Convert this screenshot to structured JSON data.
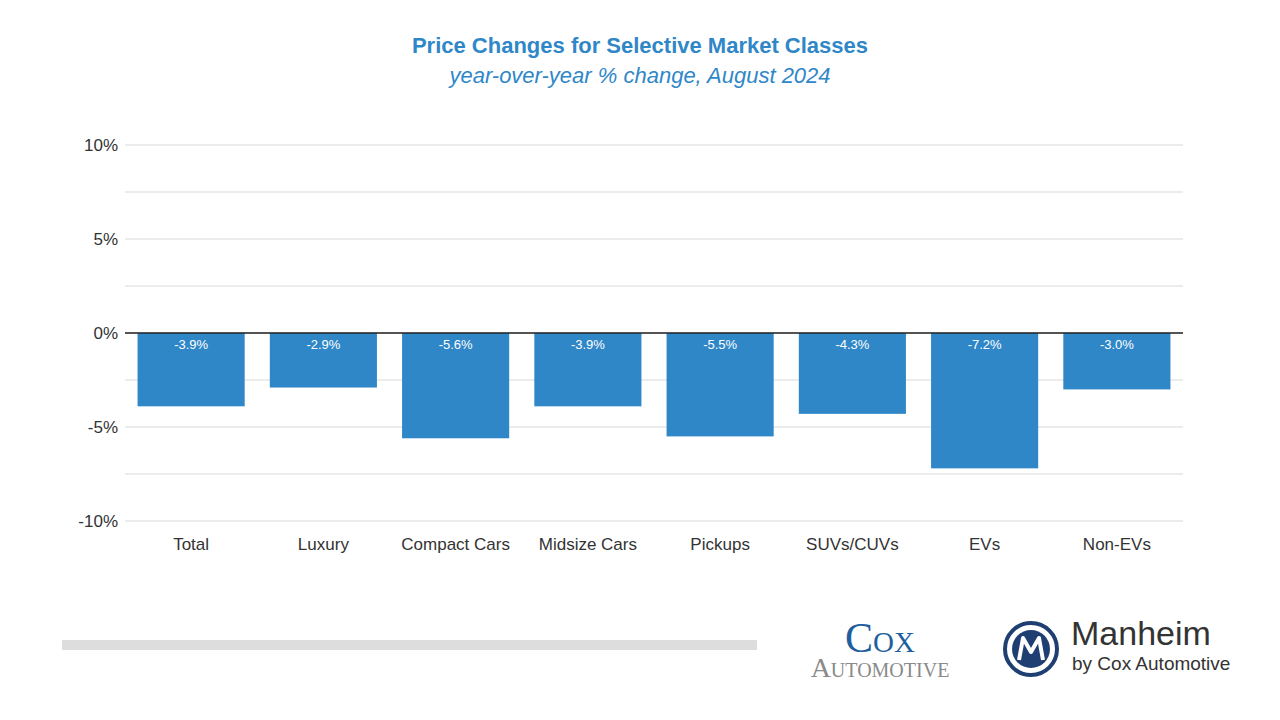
{
  "chart_data": {
    "type": "bar",
    "title": "Price Changes for Selective Market Classes",
    "subtitle": "year-over-year % change, August 2024",
    "categories": [
      "Total",
      "Luxury",
      "Compact Cars",
      "Midsize Cars",
      "Pickups",
      "SUVs/CUVs",
      "EVs",
      "Non-EVs"
    ],
    "values": [
      -3.9,
      -2.9,
      -5.6,
      -3.9,
      -5.5,
      -4.3,
      -7.2,
      -3.0
    ],
    "value_labels": [
      "-3.9%",
      "-2.9%",
      "-5.6%",
      "-3.9%",
      "-5.5%",
      "-4.3%",
      "-7.2%",
      "-3.0%"
    ],
    "color": "#2f87c8",
    "ylim": [
      -10,
      10
    ],
    "yticks": [
      {
        "value": -10,
        "label": "-10%"
      },
      {
        "value": -5,
        "label": "-5%"
      },
      {
        "value": 0,
        "label": "0%"
      },
      {
        "value": 5,
        "label": "5%"
      },
      {
        "value": 10,
        "label": "10%"
      }
    ],
    "grid": true,
    "data_labels": true
  },
  "logos": [
    {
      "lines": [
        "Cox",
        "Automotive"
      ]
    },
    {
      "lines": [
        "Manheim",
        "by Cox Automotive"
      ]
    }
  ]
}
